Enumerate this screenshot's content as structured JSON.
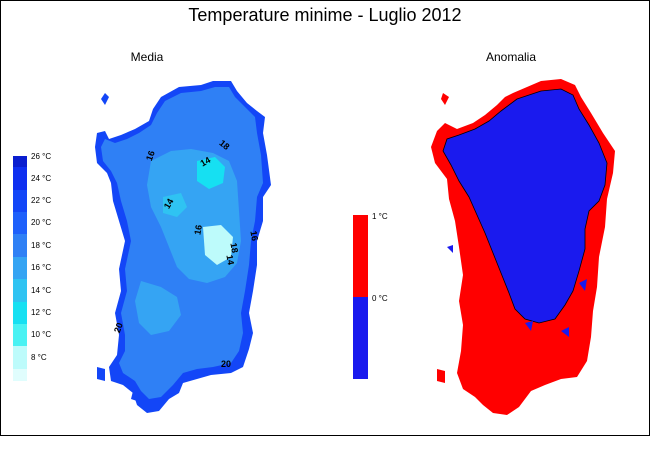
{
  "title": "Temperature minime - Luglio 2012",
  "panels": {
    "media": {
      "label": "Media",
      "legend": [
        "26 °C",
        "24 °C",
        "22 °C",
        "20 °C",
        "18 °C",
        "16 °C",
        "14 °C",
        "12 °C",
        "10 °C",
        "8 °C"
      ],
      "legend_colors": [
        "#0a1ecf",
        "#0e2ff0",
        "#1346f7",
        "#1e60fb",
        "#2f80f5",
        "#35a4f3",
        "#2fc3f2",
        "#16e0f2",
        "#49f2f3",
        "#bdfbfb",
        "#e0fdfd"
      ],
      "isolines": [
        "16",
        "14",
        "18",
        "14",
        "16",
        "14",
        "18",
        "16",
        "20",
        "20"
      ]
    },
    "anomalia": {
      "label": "Anomalia",
      "legend": [
        "1 °C",
        "0 °C"
      ],
      "legend_colors": [
        "#ff0000",
        "#1a1aee"
      ]
    }
  }
}
